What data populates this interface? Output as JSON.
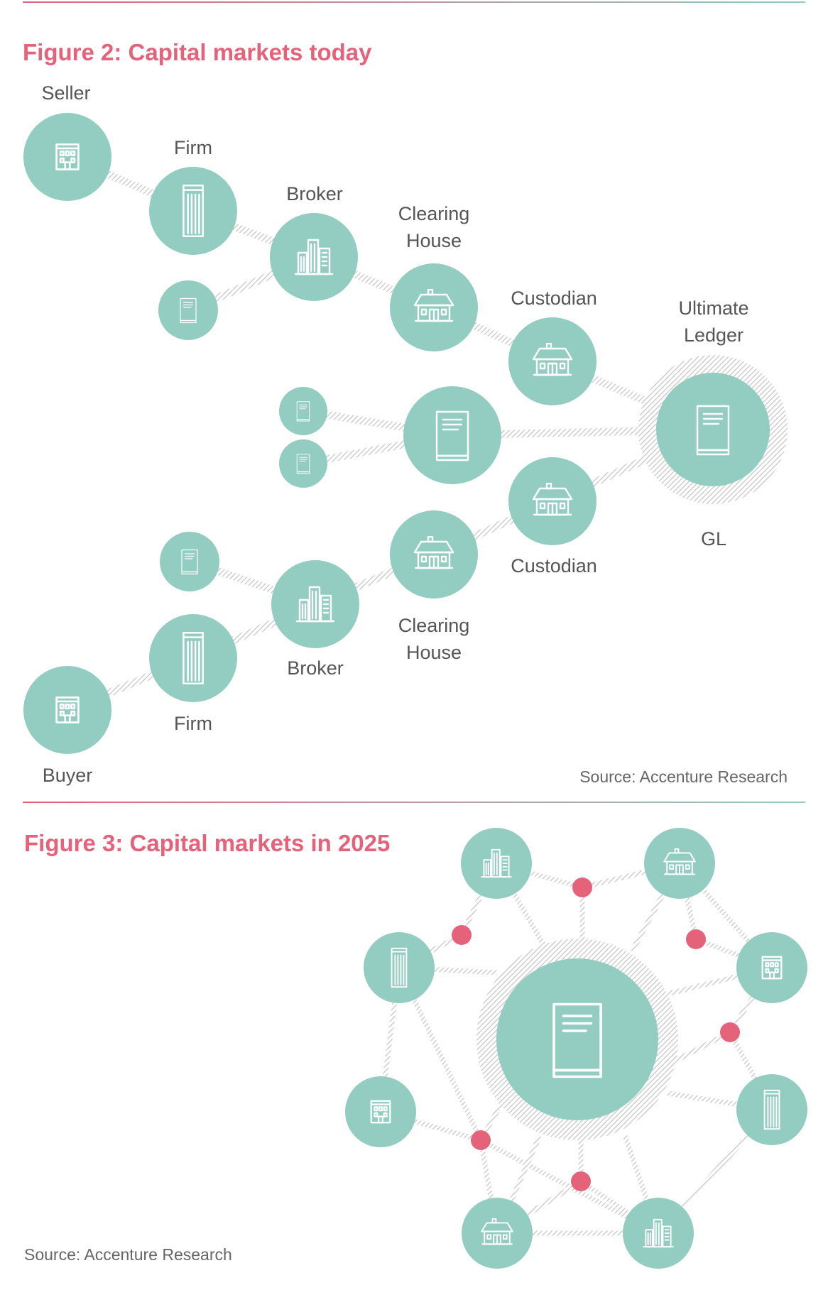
{
  "figure2": {
    "title": "Figure 2: Capital markets today",
    "labels": {
      "seller": "Seller",
      "firm_top": "Firm",
      "broker_top": "Broker",
      "clearing_top_1": "Clearing",
      "clearing_top_2": "House",
      "custodian_top": "Custodian",
      "ultimate_1": "Ultimate",
      "ultimate_2": "Ledger",
      "gl": "GL",
      "custodian_bottom": "Custodian",
      "clearing_bottom_1": "Clearing",
      "clearing_bottom_2": "House",
      "broker_bottom": "Broker",
      "firm_bottom": "Firm",
      "buyer": "Buyer"
    },
    "source": "Source: Accenture Research"
  },
  "figure3": {
    "title": "Figure 3: Capital markets in 2025",
    "source": "Source: Accenture Research"
  },
  "colors": {
    "accent": "#e5637a",
    "node": "#93ccc1",
    "connector": "#c8c8c8",
    "rule_start": "#e5637a",
    "rule_end": "#93ccc1"
  }
}
